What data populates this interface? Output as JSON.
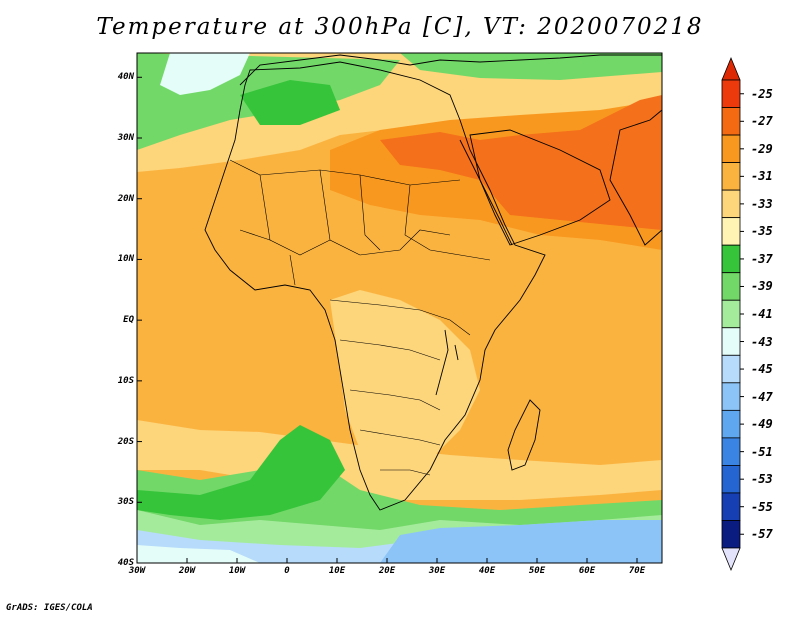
{
  "title": "Temperature at 300hPa [C], VT: 2020070218",
  "credit": "GrADS: IGES/COLA",
  "lat_labels": [
    "40N",
    "30N",
    "20N",
    "10N",
    "EQ",
    "10S",
    "20S",
    "30S",
    "40S"
  ],
  "lon_labels": [
    "30W",
    "20W",
    "10W",
    "0",
    "10E",
    "20E",
    "30E",
    "40E",
    "50E",
    "60E",
    "70E"
  ],
  "colorbar": {
    "labels": [
      "-25",
      "-27",
      "-29",
      "-31",
      "-33",
      "-35",
      "-37",
      "-39",
      "-41",
      "-43",
      "-45",
      "-47",
      "-49",
      "-51",
      "-53",
      "-55",
      "-57"
    ],
    "colors": [
      "#ec3a0c",
      "#f46a12",
      "#f9981f",
      "#fbb340",
      "#fdd57a",
      "#fff4b3",
      "#35c43a",
      "#72d868",
      "#a5eb9c",
      "#e4fdf8",
      "#b6dbfb",
      "#8cc4f7",
      "#5fa7ee",
      "#3a84e3",
      "#2465d1",
      "#163fb3",
      "#0a1c80"
    ],
    "top_arrow_color": "#dd2a05",
    "bottom_arrow_color": "#e3e3fb"
  },
  "map": {
    "lon_range": [
      -30,
      75
    ],
    "lat_range": [
      -40,
      44
    ],
    "field_colors": {
      "hot": "#f4701a",
      "warm": "#f9981f",
      "mild": "#fbb340",
      "cool": "#fdd57a",
      "pale": "#fff4b3",
      "green": "#35c43a",
      "lightgreen": "#72d868",
      "palegreen": "#a5eb9c",
      "cyan": "#e4fdf8",
      "lightblue": "#b6dbfb",
      "blue": "#8cc4f7"
    }
  }
}
